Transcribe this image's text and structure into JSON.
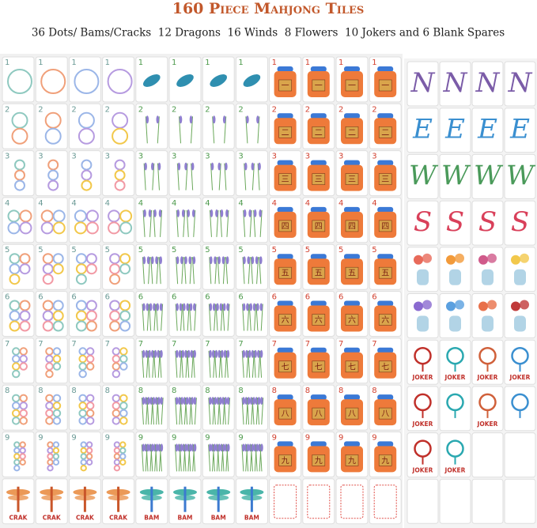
{
  "header": {
    "title": "160 Piece Mahjong Tiles",
    "subtitle": "36 Dots/ Bams/Cracks  12 Dragons  16 Winds  8 Flowers  10 Jokers and 6 Blank Spares"
  },
  "suits": [
    {
      "numbers": [
        "1",
        "2",
        "3",
        "4",
        "5",
        "6",
        "7",
        "8",
        "9"
      ],
      "dragon_label": "CRAK"
    },
    {
      "numbers": [
        "1",
        "2",
        "3",
        "4",
        "5",
        "6",
        "7",
        "8",
        "9"
      ],
      "dragon_label": "BAM"
    },
    {
      "numbers": [
        "1",
        "2",
        "3",
        "4",
        "5",
        "6",
        "7",
        "8",
        "9"
      ],
      "characters": [
        "一",
        "二",
        "三",
        "四",
        "五",
        "六",
        "七",
        "八",
        "九"
      ]
    }
  ],
  "winds": [
    "N",
    "E",
    "W",
    "S"
  ],
  "joker_label": "JOKER"
}
